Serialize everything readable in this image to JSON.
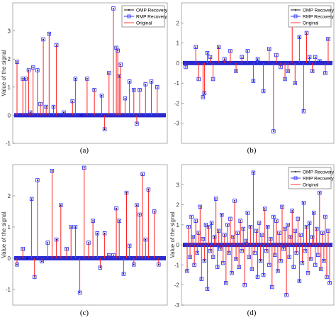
{
  "chart_data": [
    {
      "type": "line",
      "panel": "a",
      "caption": "(a)",
      "ylabel": "Value of the signal",
      "ylim": [
        -1,
        4
      ],
      "yticks": [
        "-1",
        "0",
        "1",
        "2",
        "3"
      ],
      "legend": [
        "OMP Recovery",
        "RMP Recovery",
        "Original"
      ],
      "legend_position": "top-right",
      "series": [
        {
          "name": "Original",
          "values": [
            [
              0.0,
              1.9
            ],
            [
              0.04,
              1.3
            ],
            [
              0.06,
              1.3
            ],
            [
              0.08,
              1.6
            ],
            [
              0.09,
              0.1
            ],
            [
              0.11,
              1.7
            ],
            [
              0.14,
              1.6
            ],
            [
              0.16,
              0.4
            ],
            [
              0.18,
              2.7
            ],
            [
              0.2,
              0.3
            ],
            [
              0.22,
              2.9
            ],
            [
              0.25,
              0.3
            ],
            [
              0.27,
              2.5
            ],
            [
              0.32,
              0.1
            ],
            [
              0.38,
              0.5
            ],
            [
              0.4,
              1.3
            ],
            [
              0.44,
              0.0
            ],
            [
              0.48,
              1.3
            ],
            [
              0.53,
              0.9
            ],
            [
              0.58,
              0.7
            ],
            [
              0.6,
              -0.5
            ],
            [
              0.63,
              1.5
            ],
            [
              0.66,
              3.8
            ],
            [
              0.68,
              2.4
            ],
            [
              0.69,
              2.3
            ],
            [
              0.7,
              1.4
            ],
            [
              0.71,
              1.8
            ],
            [
              0.74,
              0.6
            ],
            [
              0.77,
              1.2
            ],
            [
              0.8,
              0.9
            ],
            [
              0.82,
              -0.3
            ],
            [
              0.84,
              0.9
            ],
            [
              0.88,
              1.1
            ],
            [
              0.92,
              1.2
            ],
            [
              0.96,
              1.0
            ]
          ]
        }
      ]
    },
    {
      "type": "line",
      "panel": "b",
      "caption": "(b)",
      "ylabel": "",
      "ylim": [
        -4,
        3
      ],
      "yticks": [
        "-3",
        "-2",
        "-1",
        "0",
        "1",
        "2"
      ],
      "legend": [
        "OMP Recovery",
        "RMP Recovery",
        "Original"
      ],
      "legend_position": "top-right",
      "series": [
        {
          "name": "Original",
          "values": [
            [
              0.0,
              -0.2
            ],
            [
              0.07,
              0.8
            ],
            [
              0.09,
              -0.8
            ],
            [
              0.12,
              -1.7
            ],
            [
              0.13,
              -1.5
            ],
            [
              0.15,
              0.5
            ],
            [
              0.17,
              0.3
            ],
            [
              0.19,
              -0.8
            ],
            [
              0.23,
              0.8
            ],
            [
              0.27,
              0.2
            ],
            [
              0.31,
              0.6
            ],
            [
              0.35,
              -0.4
            ],
            [
              0.39,
              0.3
            ],
            [
              0.43,
              0.6
            ],
            [
              0.47,
              -0.9
            ],
            [
              0.5,
              0.2
            ],
            [
              0.54,
              -1.4
            ],
            [
              0.58,
              0.7
            ],
            [
              0.61,
              -3.4
            ],
            [
              0.63,
              0.4
            ],
            [
              0.66,
              -0.2
            ],
            [
              0.69,
              -0.8
            ],
            [
              0.71,
              -0.4
            ],
            [
              0.74,
              2.2
            ],
            [
              0.76,
              -1.0
            ],
            [
              0.79,
              1.3
            ],
            [
              0.82,
              -2.4
            ],
            [
              0.84,
              1.5
            ],
            [
              0.86,
              0.3
            ],
            [
              0.88,
              -0.4
            ],
            [
              0.9,
              0.3
            ],
            [
              0.93,
              0.1
            ],
            [
              0.97,
              -0.5
            ],
            [
              0.99,
              1.2
            ]
          ]
        }
      ]
    },
    {
      "type": "line",
      "panel": "c",
      "caption": "(c)",
      "ylabel": "Value of the signal",
      "ylim": [
        -1.5,
        3
      ],
      "yticks": [
        "-1",
        "0",
        "1",
        "2"
      ],
      "legend": [],
      "legend_position": "none",
      "series": [
        {
          "name": "Original",
          "values": [
            [
              0.0,
              -0.2
            ],
            [
              0.04,
              0.3
            ],
            [
              0.07,
              0.0
            ],
            [
              0.1,
              1.9
            ],
            [
              0.12,
              -0.6
            ],
            [
              0.14,
              2.5
            ],
            [
              0.17,
              -0.1
            ],
            [
              0.21,
              0.5
            ],
            [
              0.24,
              2.8
            ],
            [
              0.27,
              0.6
            ],
            [
              0.3,
              1.7
            ],
            [
              0.34,
              0.3
            ],
            [
              0.37,
              1.0
            ],
            [
              0.4,
              1.0
            ],
            [
              0.43,
              -1.1
            ],
            [
              0.46,
              2.9
            ],
            [
              0.49,
              0.5
            ],
            [
              0.52,
              1.2
            ],
            [
              0.55,
              0.8
            ],
            [
              0.57,
              -0.3
            ],
            [
              0.6,
              0.8
            ],
            [
              0.63,
              0.1
            ],
            [
              0.66,
              0.1
            ],
            [
              0.68,
              1.6
            ],
            [
              0.7,
              1.2
            ],
            [
              0.73,
              -0.5
            ],
            [
              0.75,
              2.1
            ],
            [
              0.77,
              0.4
            ],
            [
              0.8,
              -0.2
            ],
            [
              0.82,
              1.7
            ],
            [
              0.84,
              1.4
            ],
            [
              0.86,
              2.7
            ],
            [
              0.88,
              0.6
            ],
            [
              0.9,
              2.2
            ],
            [
              0.94,
              1.5
            ],
            [
              0.97,
              -0.2
            ]
          ]
        }
      ]
    },
    {
      "type": "line",
      "panel": "d",
      "caption": "(d)",
      "ylabel": "Value of the signal",
      "ylim": [
        -3,
        4
      ],
      "yticks": [
        "-3",
        "-2",
        "-1",
        "0",
        "1",
        "2",
        "3"
      ],
      "legend": [
        "OMP Recovery",
        "RMP Recovery",
        "Original"
      ],
      "legend_position": "top-right",
      "series": [
        {
          "name": "Original",
          "values": [
            [
              0.01,
              -1.3
            ],
            [
              0.02,
              0.9
            ],
            [
              0.03,
              -0.6
            ],
            [
              0.04,
              1.4
            ],
            [
              0.05,
              0.4
            ],
            [
              0.06,
              -1.0
            ],
            [
              0.07,
              1.2
            ],
            [
              0.08,
              -0.4
            ],
            [
              0.09,
              0.6
            ],
            [
              0.1,
              1.9
            ],
            [
              0.11,
              -1.7
            ],
            [
              0.12,
              0.3
            ],
            [
              0.13,
              -0.8
            ],
            [
              0.14,
              1.0
            ],
            [
              0.15,
              -2.2
            ],
            [
              0.16,
              0.9
            ],
            [
              0.17,
              -0.3
            ],
            [
              0.18,
              1.1
            ],
            [
              0.19,
              -0.6
            ],
            [
              0.2,
              0.4
            ],
            [
              0.21,
              2.3
            ],
            [
              0.22,
              -1.1
            ],
            [
              0.23,
              0.7
            ],
            [
              0.24,
              -0.2
            ],
            [
              0.25,
              1.5
            ],
            [
              0.26,
              -0.9
            ],
            [
              0.27,
              0.5
            ],
            [
              0.28,
              -1.9
            ],
            [
              0.29,
              1.0
            ],
            [
              0.3,
              -0.4
            ],
            [
              0.31,
              1.3
            ],
            [
              0.32,
              -1.4
            ],
            [
              0.33,
              0.4
            ],
            [
              0.34,
              2.2
            ],
            [
              0.35,
              -0.7
            ],
            [
              0.36,
              0.6
            ],
            [
              0.37,
              -1.1
            ],
            [
              0.38,
              1.2
            ],
            [
              0.39,
              -0.3
            ],
            [
              0.4,
              0.8
            ],
            [
              0.41,
              -2.0
            ],
            [
              0.42,
              0.2
            ],
            [
              0.43,
              1.6
            ],
            [
              0.44,
              -0.6
            ],
            [
              0.45,
              0.9
            ],
            [
              0.46,
              -1.2
            ],
            [
              0.47,
              3.6
            ],
            [
              0.48,
              -0.4
            ],
            [
              0.49,
              0.7
            ],
            [
              0.5,
              -1.6
            ],
            [
              0.51,
              1.1
            ],
            [
              0.52,
              -0.8
            ],
            [
              0.53,
              0.5
            ],
            [
              0.54,
              -1.5
            ],
            [
              0.55,
              1.8
            ],
            [
              0.56,
              -0.3
            ],
            [
              0.57,
              0.9
            ],
            [
              0.58,
              -1.0
            ],
            [
              0.59,
              0.3
            ],
            [
              0.6,
              -2.1
            ],
            [
              0.61,
              1.4
            ],
            [
              0.62,
              -0.5
            ],
            [
              0.63,
              1.2
            ],
            [
              0.64,
              -1.3
            ],
            [
              0.65,
              0.6
            ],
            [
              0.66,
              -0.8
            ],
            [
              0.67,
              1.9
            ],
            [
              0.68,
              -0.2
            ],
            [
              0.69,
              0.8
            ],
            [
              0.7,
              -2.5
            ],
            [
              0.71,
              1.0
            ],
            [
              0.72,
              -0.6
            ],
            [
              0.73,
              0.4
            ],
            [
              0.74,
              1.7
            ],
            [
              0.75,
              -1.1
            ],
            [
              0.76,
              0.7
            ],
            [
              0.77,
              -0.4
            ],
            [
              0.78,
              1.3
            ],
            [
              0.79,
              -1.8
            ],
            [
              0.8,
              0.5
            ],
            [
              0.81,
              -0.9
            ],
            [
              0.82,
              2.1
            ],
            [
              0.83,
              -0.3
            ],
            [
              0.84,
              0.9
            ],
            [
              0.85,
              -1.4
            ],
            [
              0.86,
              1.1
            ],
            [
              0.87,
              -0.7
            ],
            [
              0.88,
              0.4
            ],
            [
              0.89,
              1.6
            ],
            [
              0.9,
              -1.0
            ],
            [
              0.91,
              0.8
            ],
            [
              0.92,
              -0.5
            ],
            [
              0.93,
              2.6
            ],
            [
              0.94,
              -1.2
            ],
            [
              0.95,
              0.6
            ],
            [
              0.96,
              -0.8
            ],
            [
              0.97,
              1.4
            ],
            [
              0.98,
              -1.6
            ],
            [
              0.99,
              0.7
            ],
            [
              1.0,
              -1.9
            ]
          ]
        }
      ]
    }
  ],
  "colors": {
    "original": "#ff2020",
    "rmp": "#2020ff",
    "omp": "#000000",
    "baseline": "#2a2ad0",
    "axis_frame": "#999999"
  }
}
